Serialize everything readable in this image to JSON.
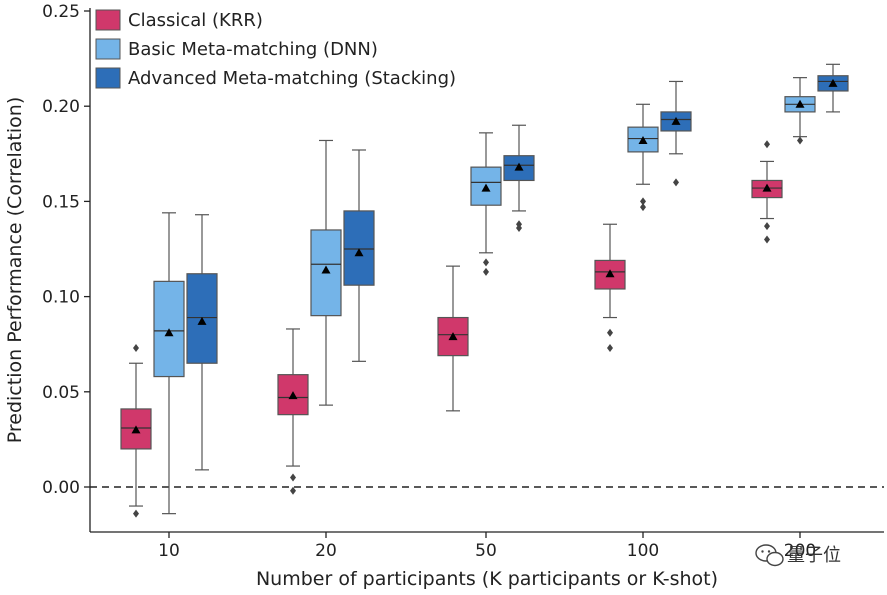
{
  "chart_data": {
    "type": "box",
    "title": "",
    "xlabel": "Number of participants (K participants or K-shot)",
    "ylabel": "Prediction Performance (Correlation)",
    "ylim": [
      -0.025,
      0.25
    ],
    "yticks": [
      "0.00",
      "0.05",
      "0.10",
      "0.15",
      "0.20",
      "0.25"
    ],
    "ytick_values": [
      0.0,
      0.05,
      0.1,
      0.15,
      0.2,
      0.25
    ],
    "categories": [
      "10",
      "20",
      "50",
      "100",
      "200"
    ],
    "reference_line": 0.0,
    "legend_position": "top-left",
    "series": [
      {
        "name": "Classical (KRR)",
        "color": "#d0386b",
        "boxes": [
          {
            "q1": 0.02,
            "median": 0.031,
            "q3": 0.041,
            "mean": 0.03,
            "whisker_low": -0.01,
            "whisker_high": 0.065,
            "outliers": [
              0.073,
              -0.014
            ]
          },
          {
            "q1": 0.038,
            "median": 0.047,
            "q3": 0.059,
            "mean": 0.048,
            "whisker_low": 0.011,
            "whisker_high": 0.083,
            "outliers": [
              0.005,
              -0.002
            ]
          },
          {
            "q1": 0.069,
            "median": 0.08,
            "q3": 0.089,
            "mean": 0.079,
            "whisker_low": 0.04,
            "whisker_high": 0.116,
            "outliers": []
          },
          {
            "q1": 0.104,
            "median": 0.113,
            "q3": 0.119,
            "mean": 0.112,
            "whisker_low": 0.089,
            "whisker_high": 0.138,
            "outliers": [
              0.081,
              0.073
            ]
          },
          {
            "q1": 0.152,
            "median": 0.157,
            "q3": 0.161,
            "mean": 0.157,
            "whisker_low": 0.141,
            "whisker_high": 0.171,
            "outliers": [
              0.18,
              0.137,
              0.13
            ]
          }
        ]
      },
      {
        "name": "Basic Meta-matching (DNN)",
        "color": "#74b4e8",
        "boxes": [
          {
            "q1": 0.058,
            "median": 0.082,
            "q3": 0.108,
            "mean": 0.081,
            "whisker_low": -0.014,
            "whisker_high": 0.144,
            "outliers": []
          },
          {
            "q1": 0.09,
            "median": 0.117,
            "q3": 0.135,
            "mean": 0.114,
            "whisker_low": 0.043,
            "whisker_high": 0.182,
            "outliers": []
          },
          {
            "q1": 0.148,
            "median": 0.16,
            "q3": 0.168,
            "mean": 0.157,
            "whisker_low": 0.123,
            "whisker_high": 0.186,
            "outliers": [
              0.118,
              0.113
            ]
          },
          {
            "q1": 0.176,
            "median": 0.183,
            "q3": 0.189,
            "mean": 0.182,
            "whisker_low": 0.159,
            "whisker_high": 0.201,
            "outliers": [
              0.15,
              0.147
            ]
          },
          {
            "q1": 0.197,
            "median": 0.201,
            "q3": 0.205,
            "mean": 0.201,
            "whisker_low": 0.184,
            "whisker_high": 0.215,
            "outliers": [
              0.182
            ]
          }
        ]
      },
      {
        "name": "Advanced Meta-matching (Stacking)",
        "color": "#2d6eb8",
        "boxes": [
          {
            "q1": 0.065,
            "median": 0.089,
            "q3": 0.112,
            "mean": 0.087,
            "whisker_low": 0.009,
            "whisker_high": 0.143,
            "outliers": []
          },
          {
            "q1": 0.106,
            "median": 0.125,
            "q3": 0.145,
            "mean": 0.123,
            "whisker_low": 0.066,
            "whisker_high": 0.177,
            "outliers": []
          },
          {
            "q1": 0.161,
            "median": 0.169,
            "q3": 0.174,
            "mean": 0.168,
            "whisker_low": 0.145,
            "whisker_high": 0.19,
            "outliers": [
              0.138,
              0.136
            ]
          },
          {
            "q1": 0.187,
            "median": 0.193,
            "q3": 0.197,
            "mean": 0.192,
            "whisker_low": 0.175,
            "whisker_high": 0.213,
            "outliers": [
              0.16
            ]
          },
          {
            "q1": 0.208,
            "median": 0.213,
            "q3": 0.216,
            "mean": 0.212,
            "whisker_low": 0.197,
            "whisker_high": 0.222,
            "outliers": []
          }
        ]
      }
    ]
  },
  "watermark": {
    "text": "量子位",
    "icon": "wechat-icon"
  }
}
